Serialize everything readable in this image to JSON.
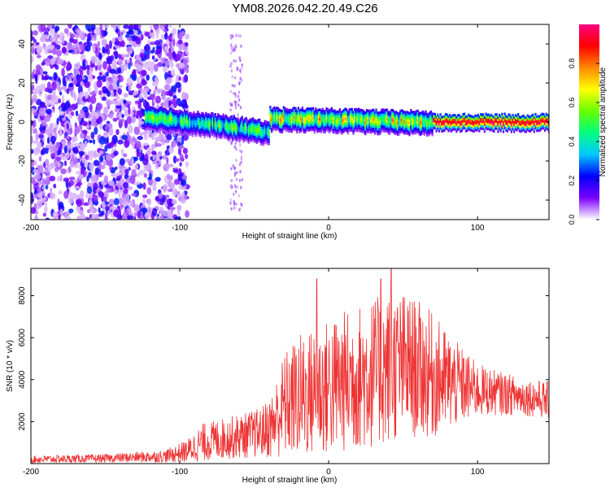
{
  "title": "YM08.2026.042.20.49.C26",
  "chart_data": [
    {
      "type": "heatmap",
      "title": "YM08.2026.042.20.49.C26",
      "xlabel": "Height of straight line (km)",
      "ylabel": "Frequency (Hz)",
      "xlim": [
        -200,
        148
      ],
      "ylim": [
        -50,
        50
      ],
      "xticks": [
        "-200",
        "-100",
        "0",
        "100"
      ],
      "yticks": [
        "-40",
        "-20",
        "0",
        "20",
        "40"
      ],
      "colorbar": {
        "label": "Normalized spectral amplitude",
        "range": [
          0,
          1
        ],
        "ticks": [
          "0.0",
          "0.2",
          "0.4",
          "0.6",
          "0.8"
        ],
        "colors": [
          "#ffffff",
          "#7a00ff",
          "#0000ff",
          "#00c8ff",
          "#00ff80",
          "#66ff00",
          "#ffff00",
          "#ff8800",
          "#ff0000",
          "#ff0080"
        ]
      },
      "regions": [
        {
          "x": [
            -200,
            -95
          ],
          "y_spread": [
            -50,
            50
          ],
          "level": "scattered 0.05-0.25"
        },
        {
          "x": [
            -123,
            -40
          ],
          "ridge_frequency": [
            3,
            0,
            -5
          ],
          "level": "0.2-0.6"
        },
        {
          "x": [
            -40,
            70
          ],
          "ridge_frequency": [
            2,
            0
          ],
          "level": "0.4-0.8"
        },
        {
          "x": [
            70,
            148
          ],
          "ridge_frequency": [
            0,
            0
          ],
          "level": "0.9-1.0"
        }
      ]
    },
    {
      "type": "line",
      "xlabel": "Height of straight line (km)",
      "ylabel": "SNR (10 * v/v)",
      "xlim": [
        -200,
        148
      ],
      "ylim": [
        0,
        9300
      ],
      "xticks": [
        "-200",
        "-100",
        "0",
        "100"
      ],
      "yticks": [
        "2000",
        "4000",
        "6000",
        "8000"
      ],
      "color": "#ee3333",
      "envelope": {
        "x": [
          -200,
          -150,
          -110,
          -95,
          -85,
          -70,
          -55,
          -45,
          -38,
          -30,
          -20,
          -10,
          0,
          10,
          20,
          30,
          40,
          50,
          60,
          70,
          80,
          90,
          100,
          110,
          120,
          130,
          140,
          148
        ],
        "mean": [
          200,
          250,
          350,
          600,
          1000,
          1200,
          1350,
          1500,
          1800,
          2800,
          3200,
          3400,
          3600,
          3900,
          4100,
          4300,
          4500,
          4700,
          4500,
          4200,
          3900,
          3700,
          3500,
          3400,
          3300,
          3200,
          3100,
          3000
        ],
        "amplitude": [
          180,
          200,
          300,
          550,
          900,
          1000,
          1100,
          1200,
          1600,
          2500,
          3000,
          3100,
          3300,
          3400,
          3500,
          3600,
          3600,
          3500,
          3300,
          3000,
          2400,
          1800,
          1300,
          1100,
          1000,
          900,
          900,
          900
        ]
      },
      "peaks": [
        {
          "x": -8,
          "y": 8800
        },
        {
          "x": 35,
          "y": 8800
        },
        {
          "x": 42,
          "y": 9300
        }
      ]
    }
  ]
}
